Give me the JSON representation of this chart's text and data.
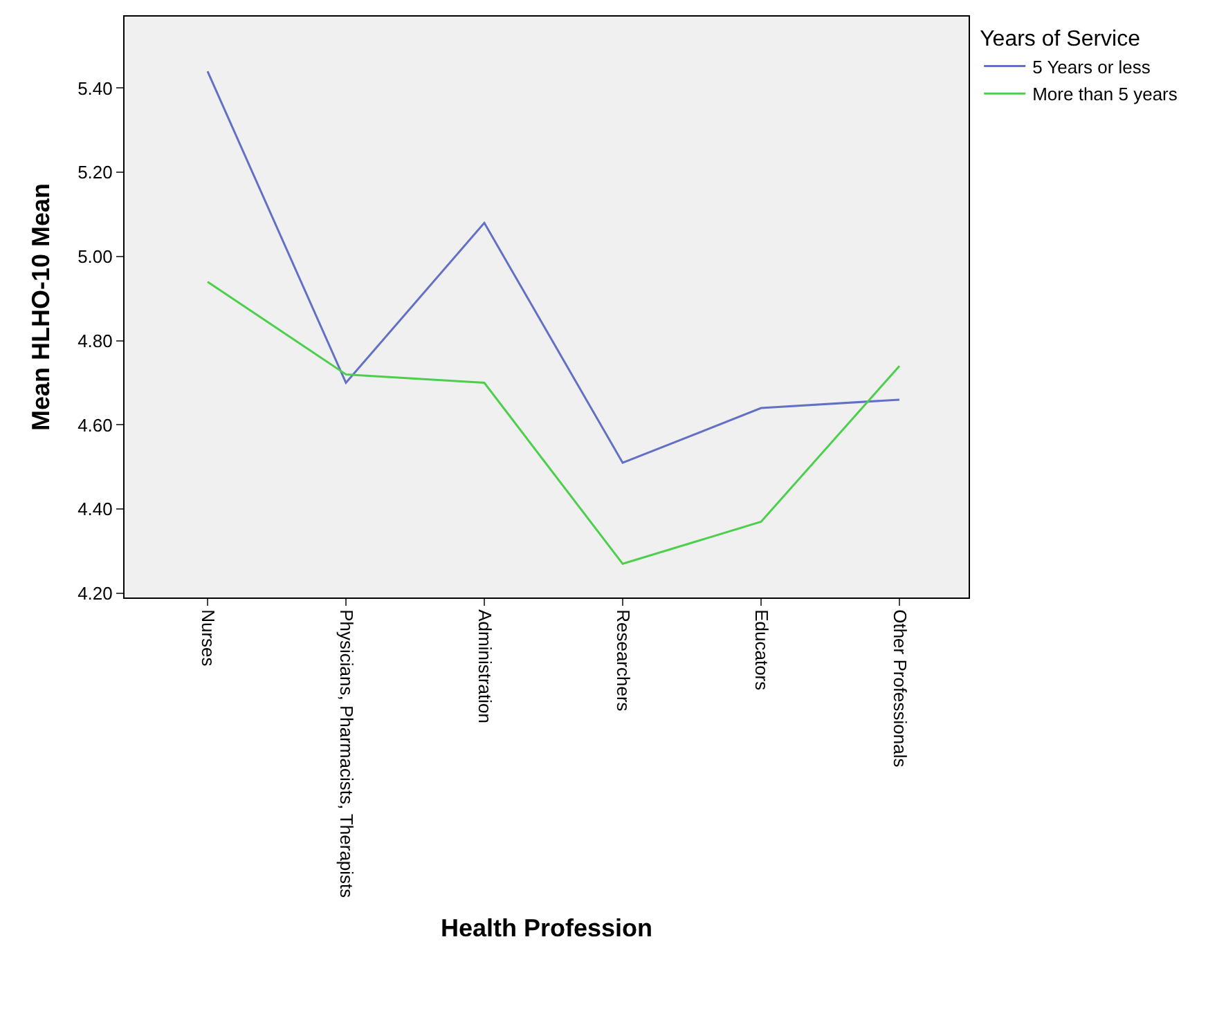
{
  "chart_data": {
    "type": "line",
    "xlabel": "Health Profession",
    "ylabel": "Mean HLHO-10 Mean",
    "legend_title": "Years of Service",
    "categories": [
      "Nurses",
      "Physicians, Pharmacists, Therapists",
      "Administration",
      "Researchers",
      "Educators",
      "Other Professionals"
    ],
    "series": [
      {
        "name": "5 Years or less",
        "color": "#6271c4",
        "values": [
          5.44,
          4.7,
          5.08,
          4.51,
          4.64,
          4.66
        ]
      },
      {
        "name": "More than 5 years",
        "color": "#4ccf4c",
        "values": [
          4.94,
          4.72,
          4.7,
          4.27,
          4.37,
          4.74
        ]
      }
    ],
    "ylim": [
      4.19,
      5.57
    ],
    "yticks": [
      {
        "value": 4.2,
        "label": "4.20"
      },
      {
        "value": 4.4,
        "label": "4.40"
      },
      {
        "value": 4.6,
        "label": "4.60"
      },
      {
        "value": 4.8,
        "label": "4.80"
      },
      {
        "value": 5.0,
        "label": "5.00"
      },
      {
        "value": 5.2,
        "label": "5.20"
      },
      {
        "value": 5.4,
        "label": "5.40"
      }
    ],
    "grid": false,
    "legend": "top right",
    "marker": "none",
    "line_style": "solid"
  }
}
